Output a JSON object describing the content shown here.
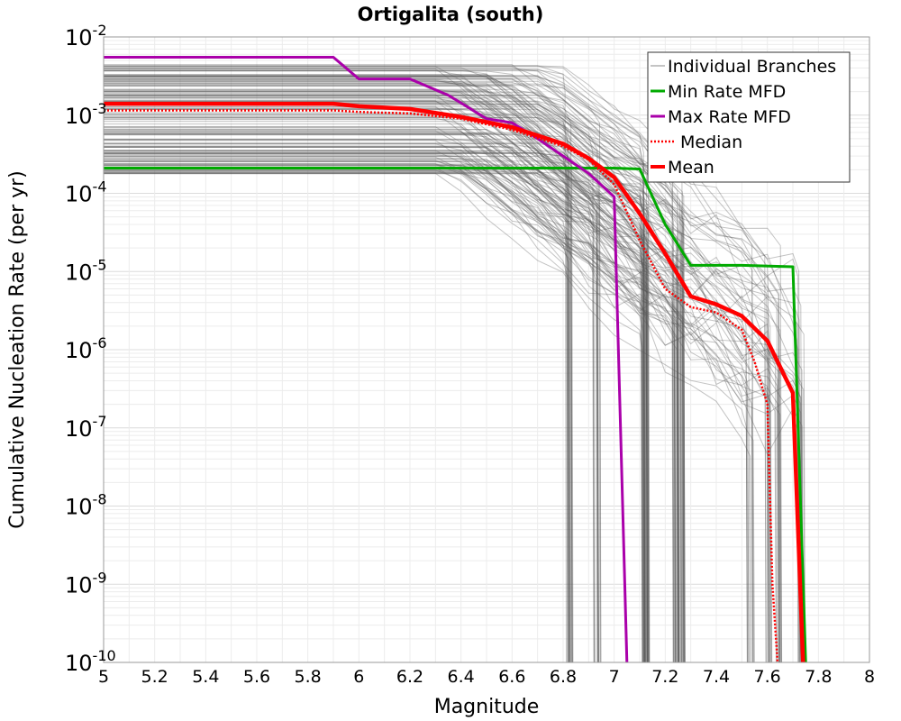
{
  "chart_data": {
    "type": "line",
    "title": "Ortigalita (south)",
    "xlabel": "Magnitude",
    "ylabel": "Cumulative Nucleation Rate (per yr)",
    "xlim": [
      5,
      8
    ],
    "ylim": [
      1e-10,
      0.01
    ],
    "yscale": "log",
    "grid": true,
    "legend_position": "top-right",
    "x_ticks": [
      "5",
      "5.2",
      "5.4",
      "5.6",
      "5.8",
      "6",
      "6.2",
      "6.4",
      "6.6",
      "6.8",
      "7",
      "7.2",
      "7.4",
      "7.6",
      "7.8",
      "8"
    ],
    "y_ticks": [
      {
        "base": "10",
        "exp": "-10"
      },
      {
        "base": "10",
        "exp": "-9"
      },
      {
        "base": "10",
        "exp": "-8"
      },
      {
        "base": "10",
        "exp": "-7"
      },
      {
        "base": "10",
        "exp": "-6"
      },
      {
        "base": "10",
        "exp": "-5"
      },
      {
        "base": "10",
        "exp": "-4"
      },
      {
        "base": "10",
        "exp": "-3"
      },
      {
        "base": "10",
        "exp": "-2"
      }
    ],
    "series": [
      {
        "name": "Individual Branches",
        "color": "#555555",
        "style": "thin-translucent",
        "note_band": true
      },
      {
        "name": "Min Rate MFD",
        "color": "#00aa00",
        "style": "solid",
        "x": [
          5.0,
          5.9,
          6.0,
          6.5,
          7.0,
          7.1,
          7.2,
          7.3,
          7.5,
          7.7,
          7.75
        ],
        "y": [
          0.00021,
          0.00021,
          0.00021,
          0.00021,
          0.00021,
          0.000205,
          4e-05,
          1.2e-05,
          1.2e-05,
          1.15e-05,
          1e-10
        ]
      },
      {
        "name": "Max Rate MFD",
        "color": "#aa00aa",
        "style": "solid",
        "x": [
          5.0,
          5.9,
          6.0,
          6.2,
          6.35,
          6.5,
          6.6,
          6.7,
          6.8,
          6.9,
          7.0,
          7.05
        ],
        "y": [
          0.0055,
          0.0055,
          0.0029,
          0.0029,
          0.0018,
          0.0009,
          0.0008,
          0.0005,
          0.0003,
          0.00018,
          9e-05,
          1e-10
        ]
      },
      {
        "name": "Median",
        "color": "#ff0000",
        "style": "dotted",
        "x": [
          5.0,
          5.9,
          6.0,
          6.2,
          6.4,
          6.6,
          6.8,
          6.9,
          7.0,
          7.1,
          7.2,
          7.3,
          7.4,
          7.5,
          7.55,
          7.6,
          7.62,
          7.64
        ],
        "y": [
          0.00115,
          0.00115,
          0.0011,
          0.00105,
          0.0009,
          0.00065,
          0.0004,
          0.00027,
          0.00013,
          2.5e-05,
          6e-06,
          3.5e-06,
          3e-06,
          1.8e-06,
          7e-07,
          2e-07,
          1e-09,
          1e-10
        ]
      },
      {
        "name": "Mean",
        "color": "#ff0000",
        "style": "thick",
        "x": [
          5.0,
          5.9,
          6.0,
          6.2,
          6.4,
          6.6,
          6.8,
          6.9,
          7.0,
          7.1,
          7.2,
          7.3,
          7.4,
          7.5,
          7.6,
          7.7,
          7.74
        ],
        "y": [
          0.0014,
          0.0014,
          0.0013,
          0.0012,
          0.00095,
          0.0007,
          0.00043,
          0.00028,
          0.00016,
          5.5e-05,
          1.7e-05,
          4.8e-06,
          3.8e-06,
          2.7e-06,
          1.3e-06,
          2.8e-07,
          1e-10
        ]
      }
    ]
  }
}
